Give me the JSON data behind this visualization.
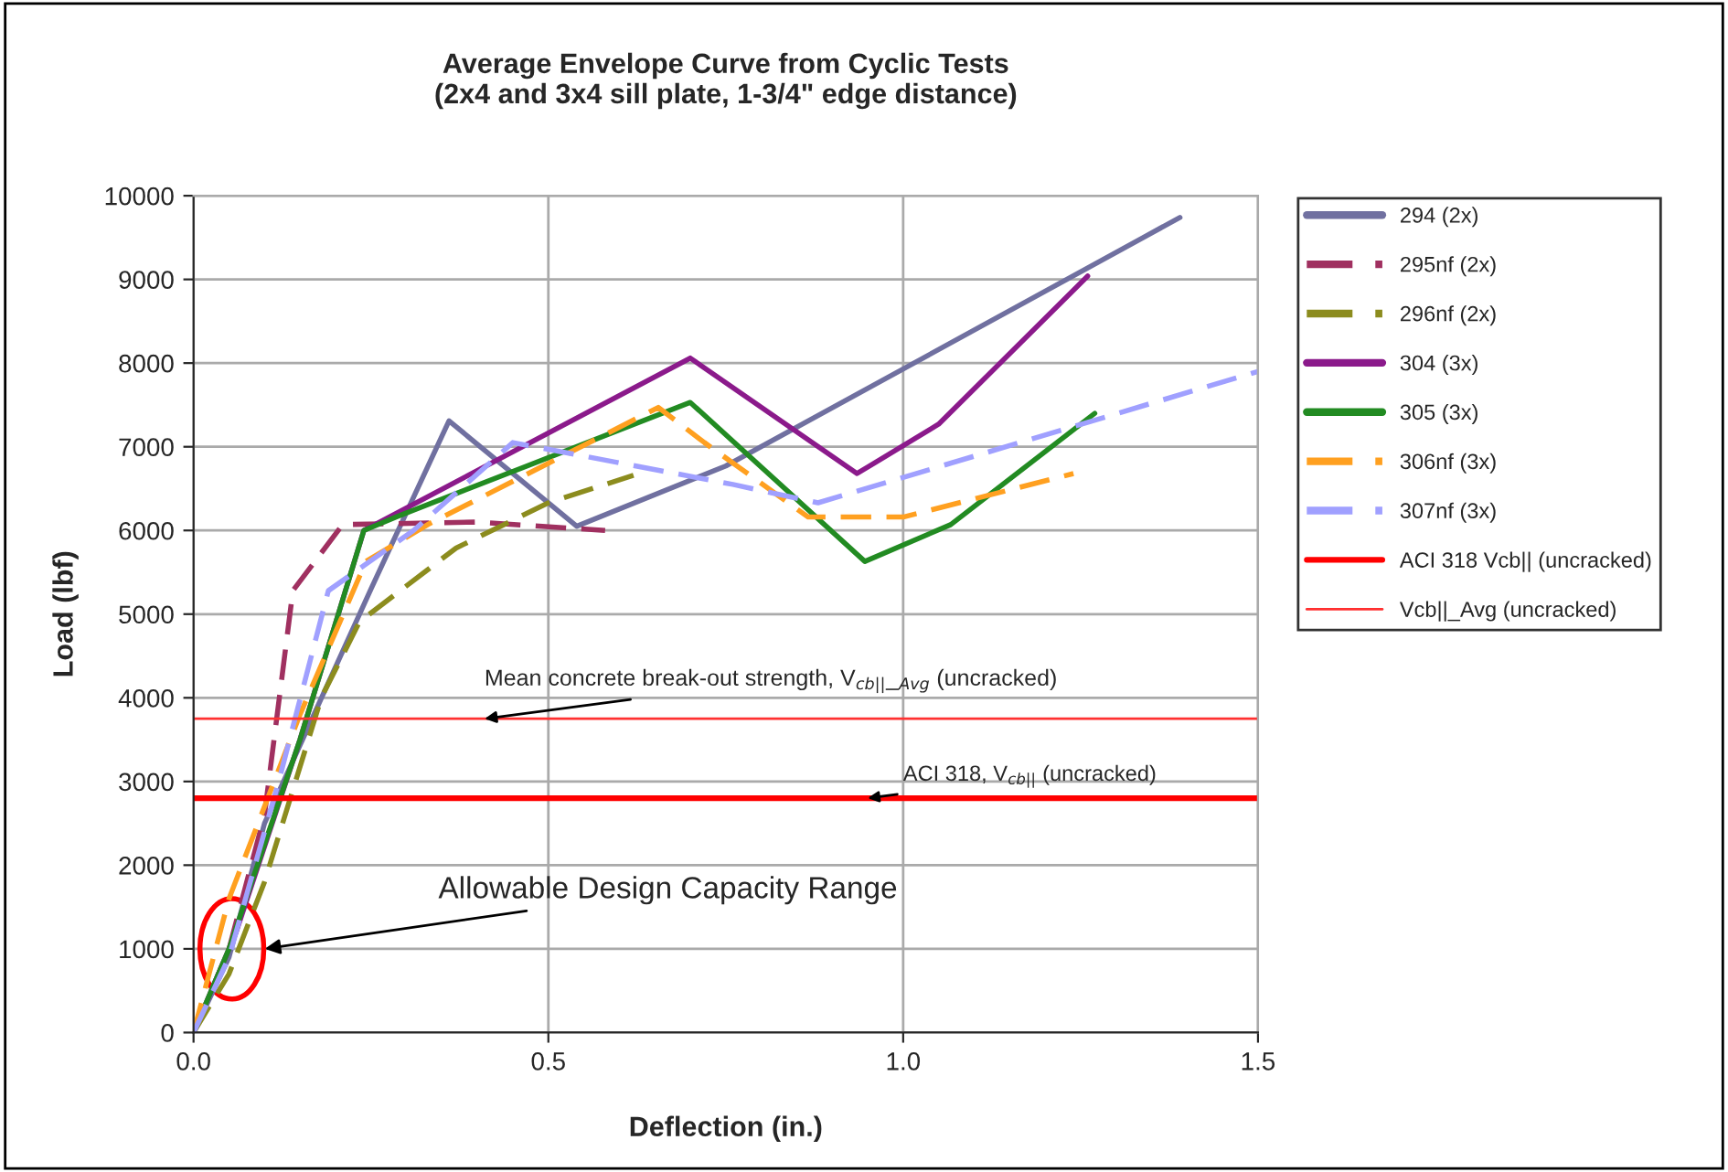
{
  "chart_data": {
    "type": "line",
    "title": "Average Envelope Curve from Cyclic Tests\n(2x4 and 3x4 sill plate, 1-3/4\" edge distance)",
    "xlabel": "Deflection (in.)",
    "ylabel": "Load (lbf)",
    "xlim": [
      0,
      1.5
    ],
    "xticks": [
      {
        "value": 0,
        "label": "0.0"
      },
      0.5,
      {
        "value": 1,
        "label": "1.0"
      },
      1.5
    ],
    "ylim": [
      0,
      10000
    ],
    "yticks": [
      0,
      1000,
      2000,
      3000,
      4000,
      5000,
      6000,
      7000,
      8000,
      9000,
      10000
    ],
    "grid": true,
    "legend": "right",
    "marker": "none",
    "series": [
      {
        "name": "294 (2x)",
        "color": "#7070a0",
        "line_style": "solid",
        "x": [
          0,
          0.05,
          0.1,
          0.25,
          0.36,
          0.54,
          0.75,
          1.39
        ],
        "values": [
          0,
          900,
          2500,
          5300,
          7310,
          6050,
          6770,
          9740
        ]
      },
      {
        "name": "295nf (2x)",
        "color": "#a03060",
        "line_style": "dashed",
        "x": [
          0,
          0.05,
          0.1,
          0.14,
          0.21,
          0.4,
          0.58
        ],
        "values": [
          0,
          1000,
          2600,
          5280,
          6070,
          6100,
          6000
        ]
      },
      {
        "name": "296nf (2x)",
        "color": "#8c8c1e",
        "line_style": "dashed",
        "x": [
          0,
          0.05,
          0.1,
          0.18,
          0.234,
          0.37,
          0.5,
          0.62
        ],
        "values": [
          0,
          700,
          1800,
          4000,
          4910,
          5790,
          6330,
          6660
        ]
      },
      {
        "name": "304 (3x)",
        "color": "#8b1a8b",
        "line_style": "solid",
        "x": [
          0,
          0.03,
          0.06,
          0.15,
          0.24,
          0.7,
          0.935,
          1.05,
          1.26
        ],
        "values": [
          0,
          600,
          1200,
          3500,
          6000,
          8060,
          6680,
          7270,
          9040
        ]
      },
      {
        "name": "305 (3x)",
        "color": "#228b22",
        "line_style": "solid",
        "x": [
          0,
          0.05,
          0.15,
          0.24,
          0.285,
          0.7,
          0.946,
          1.067,
          1.27
        ],
        "values": [
          0,
          1000,
          3500,
          6000,
          6160,
          7530,
          5630,
          6070,
          7400
        ]
      },
      {
        "name": "306nf (3x)",
        "color": "#ffa020",
        "line_style": "dashed",
        "x": [
          0,
          0.05,
          0.15,
          0.243,
          0.33,
          0.655,
          0.72,
          0.866,
          1.0,
          1.24
        ],
        "values": [
          0,
          1600,
          3800,
          5630,
          6070,
          7470,
          7050,
          6160,
          6160,
          6680
        ]
      },
      {
        "name": "307nf (3x)",
        "color": "#a0a0ff",
        "line_style": "dashed",
        "x": [
          0,
          0.05,
          0.12,
          0.19,
          0.31,
          0.45,
          0.76,
          0.88,
          1.5
        ],
        "values": [
          0,
          900,
          3000,
          5280,
          6000,
          7050,
          6550,
          6330,
          7900
        ]
      }
    ],
    "ref_lines": [
      {
        "axis": "y",
        "value": 2800,
        "label": "ACI 318 Vcb|| (uncracked)",
        "color": "#ff0000"
      },
      {
        "axis": "y",
        "value": 3750,
        "label": "Vcb||_Avg (uncracked)",
        "color": "#ff3030"
      }
    ],
    "annotations": [
      {
        "text": "Mean concrete break-out strength, V$_{cb||}$_$_{Avg}$ (uncracked)",
        "x": 0.41,
        "y": 3750
      },
      {
        "text": "ACI 318, V$_{cb||}$ (uncracked)",
        "x": 0.95,
        "y": 2800
      },
      "Allowable Design Capacity Range"
    ]
  }
}
